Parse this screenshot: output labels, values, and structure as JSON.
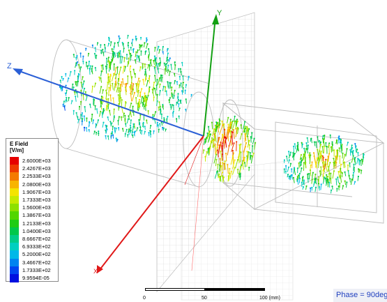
{
  "axes": {
    "x_label": "X",
    "y_label": "Y",
    "z_label": "Z"
  },
  "legend": {
    "title": "E Field",
    "unit": "[V/m]",
    "entries": [
      {
        "value": "2.6000E+03",
        "color": "#e60000"
      },
      {
        "value": "2.4267E+03",
        "color": "#ee3a00"
      },
      {
        "value": "2.2533E+03",
        "color": "#f47a00"
      },
      {
        "value": "2.0800E+03",
        "color": "#f8b400"
      },
      {
        "value": "1.9067E+03",
        "color": "#f4e400"
      },
      {
        "value": "1.7333E+03",
        "color": "#c6ea00"
      },
      {
        "value": "1.5600E+03",
        "color": "#8de000"
      },
      {
        "value": "1.3867E+03",
        "color": "#52d600"
      },
      {
        "value": "1.2133E+03",
        "color": "#1fcc14"
      },
      {
        "value": "1.0400E+03",
        "color": "#00c84a"
      },
      {
        "value": "8.6667E+02",
        "color": "#00cc88"
      },
      {
        "value": "6.9333E+02",
        "color": "#00cfc0"
      },
      {
        "value": "5.2000E+02",
        "color": "#00b8e8"
      },
      {
        "value": "3.4667E+02",
        "color": "#0084f0"
      },
      {
        "value": "1.7333E+02",
        "color": "#0046f0"
      },
      {
        "value": "9.9594E-05",
        "color": "#0010e0"
      }
    ]
  },
  "scalebar": {
    "labels": [
      "0",
      "50",
      "100 (mm)"
    ]
  },
  "phase_label": "Phase = 90deg",
  "colors": {
    "x_axis": "#e01818",
    "y_axis": "#12a012",
    "z_axis": "#2a5fd6",
    "accent": "#1f3fbf"
  }
}
